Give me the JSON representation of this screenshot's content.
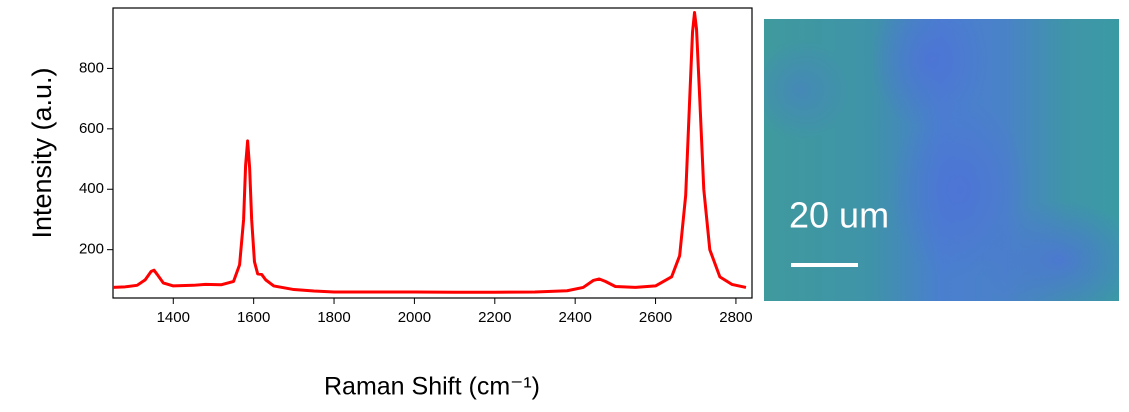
{
  "chart_data": {
    "type": "line",
    "x_label": "Raman Shift (cm⁻¹)",
    "y_label": "Intensity (a.u.)",
    "x": [
      1250,
      1280,
      1310,
      1330,
      1345,
      1352,
      1360,
      1375,
      1400,
      1450,
      1480,
      1520,
      1550,
      1565,
      1575,
      1580,
      1585,
      1590,
      1595,
      1602,
      1610,
      1620,
      1630,
      1650,
      1700,
      1750,
      1800,
      1900,
      2000,
      2100,
      2200,
      2300,
      2380,
      2420,
      2445,
      2460,
      2475,
      2500,
      2550,
      2600,
      2640,
      2660,
      2675,
      2685,
      2692,
      2697,
      2702,
      2710,
      2720,
      2735,
      2760,
      2790,
      2825
    ],
    "values": [
      75,
      77,
      82,
      100,
      128,
      132,
      118,
      90,
      80,
      82,
      85,
      84,
      95,
      150,
      300,
      480,
      560,
      470,
      300,
      160,
      120,
      118,
      100,
      80,
      68,
      63,
      60,
      60,
      60,
      59,
      59,
      60,
      64,
      75,
      98,
      103,
      95,
      78,
      75,
      80,
      110,
      180,
      380,
      700,
      920,
      985,
      930,
      700,
      400,
      200,
      110,
      85,
      75
    ],
    "color": "#ff0000",
    "xlim": [
      1250,
      2840
    ],
    "ylim": [
      40,
      1000
    ],
    "xticks": [
      1400,
      1600,
      1800,
      2000,
      2200,
      2400,
      2600,
      2800
    ],
    "yticks": [
      200,
      400,
      600,
      800
    ]
  },
  "scale_bar_label": "20 um"
}
